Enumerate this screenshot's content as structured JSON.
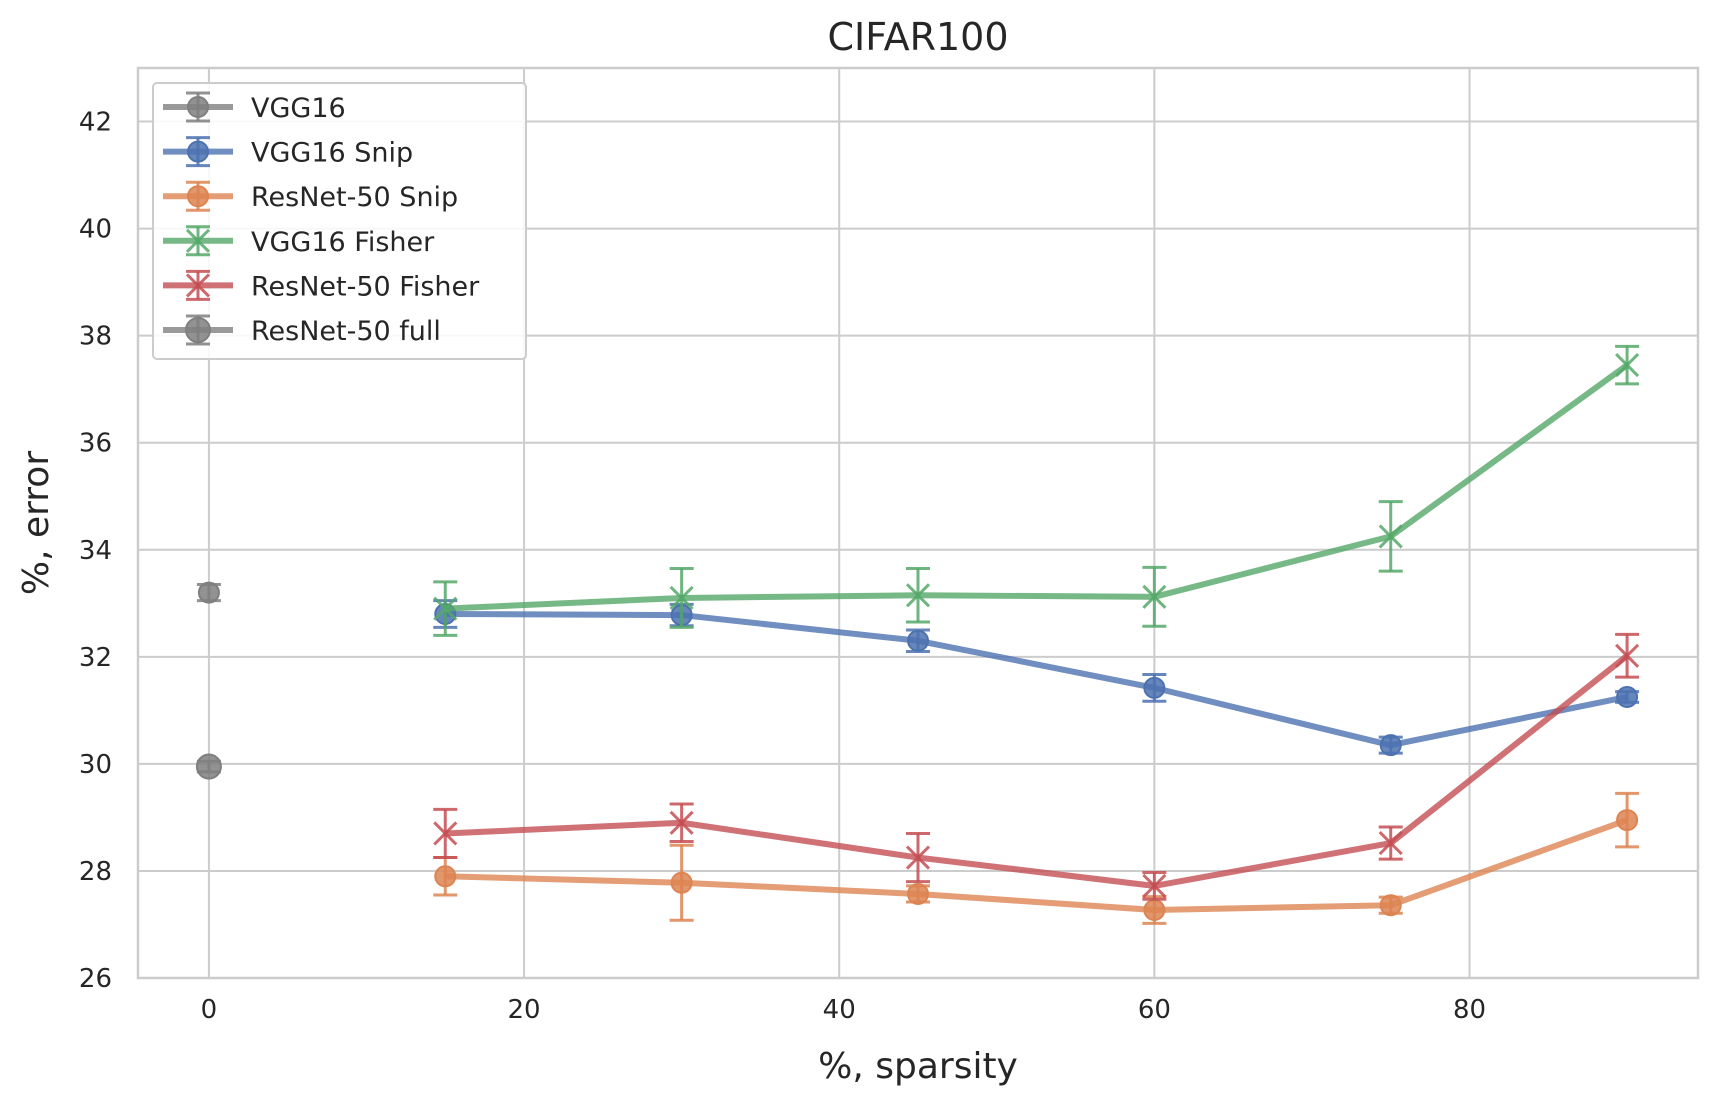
{
  "chart_data": {
    "type": "line",
    "title": "CIFAR100",
    "xlabel": "%, sparsity",
    "ylabel": "%, error",
    "xlim": [
      -4.5,
      94.5
    ],
    "ylim": [
      26,
      43
    ],
    "xticks": [
      0,
      20,
      40,
      60,
      80
    ],
    "yticks": [
      26,
      28,
      30,
      32,
      34,
      36,
      38,
      40,
      42
    ],
    "grid": true,
    "legend_position": "top-left",
    "series": [
      {
        "name": "VGG16",
        "color": "#7f7f7f",
        "marker": "circle",
        "x": [
          0
        ],
        "y": [
          33.2
        ],
        "err": [
          0.15
        ]
      },
      {
        "name": "VGG16 Snip",
        "color": "#4c72b0",
        "marker": "circle",
        "x": [
          15,
          30,
          45,
          60,
          75,
          90
        ],
        "y": [
          32.8,
          32.78,
          32.3,
          31.42,
          30.35,
          31.25
        ],
        "err": [
          0.25,
          0.2,
          0.2,
          0.25,
          0.15,
          0.1
        ]
      },
      {
        "name": "ResNet-50 Snip",
        "color": "#dd8452",
        "marker": "circle",
        "x": [
          15,
          30,
          45,
          60,
          75,
          90
        ],
        "y": [
          27.9,
          27.78,
          27.57,
          27.27,
          27.36,
          28.95
        ],
        "err": [
          0.35,
          0.7,
          0.15,
          0.25,
          0.15,
          0.5
        ]
      },
      {
        "name": "VGG16 Fisher",
        "color": "#55a868",
        "marker": "x",
        "x": [
          15,
          30,
          45,
          60,
          75,
          90
        ],
        "y": [
          32.9,
          33.1,
          33.15,
          33.12,
          34.25,
          37.45
        ],
        "err": [
          0.5,
          0.55,
          0.5,
          0.55,
          0.65,
          0.35
        ]
      },
      {
        "name": "ResNet-50 Fisher",
        "color": "#c44e52",
        "marker": "x",
        "x": [
          15,
          30,
          45,
          60,
          75,
          90
        ],
        "y": [
          28.7,
          28.9,
          28.25,
          27.72,
          28.52,
          32.02
        ],
        "err": [
          0.45,
          0.35,
          0.45,
          0.25,
          0.3,
          0.4
        ]
      },
      {
        "name": "ResNet-50 full",
        "color": "#7f7f7f",
        "marker": "circle-large",
        "x": [
          0
        ],
        "y": [
          29.95
        ],
        "err": [
          0.1
        ]
      }
    ]
  }
}
